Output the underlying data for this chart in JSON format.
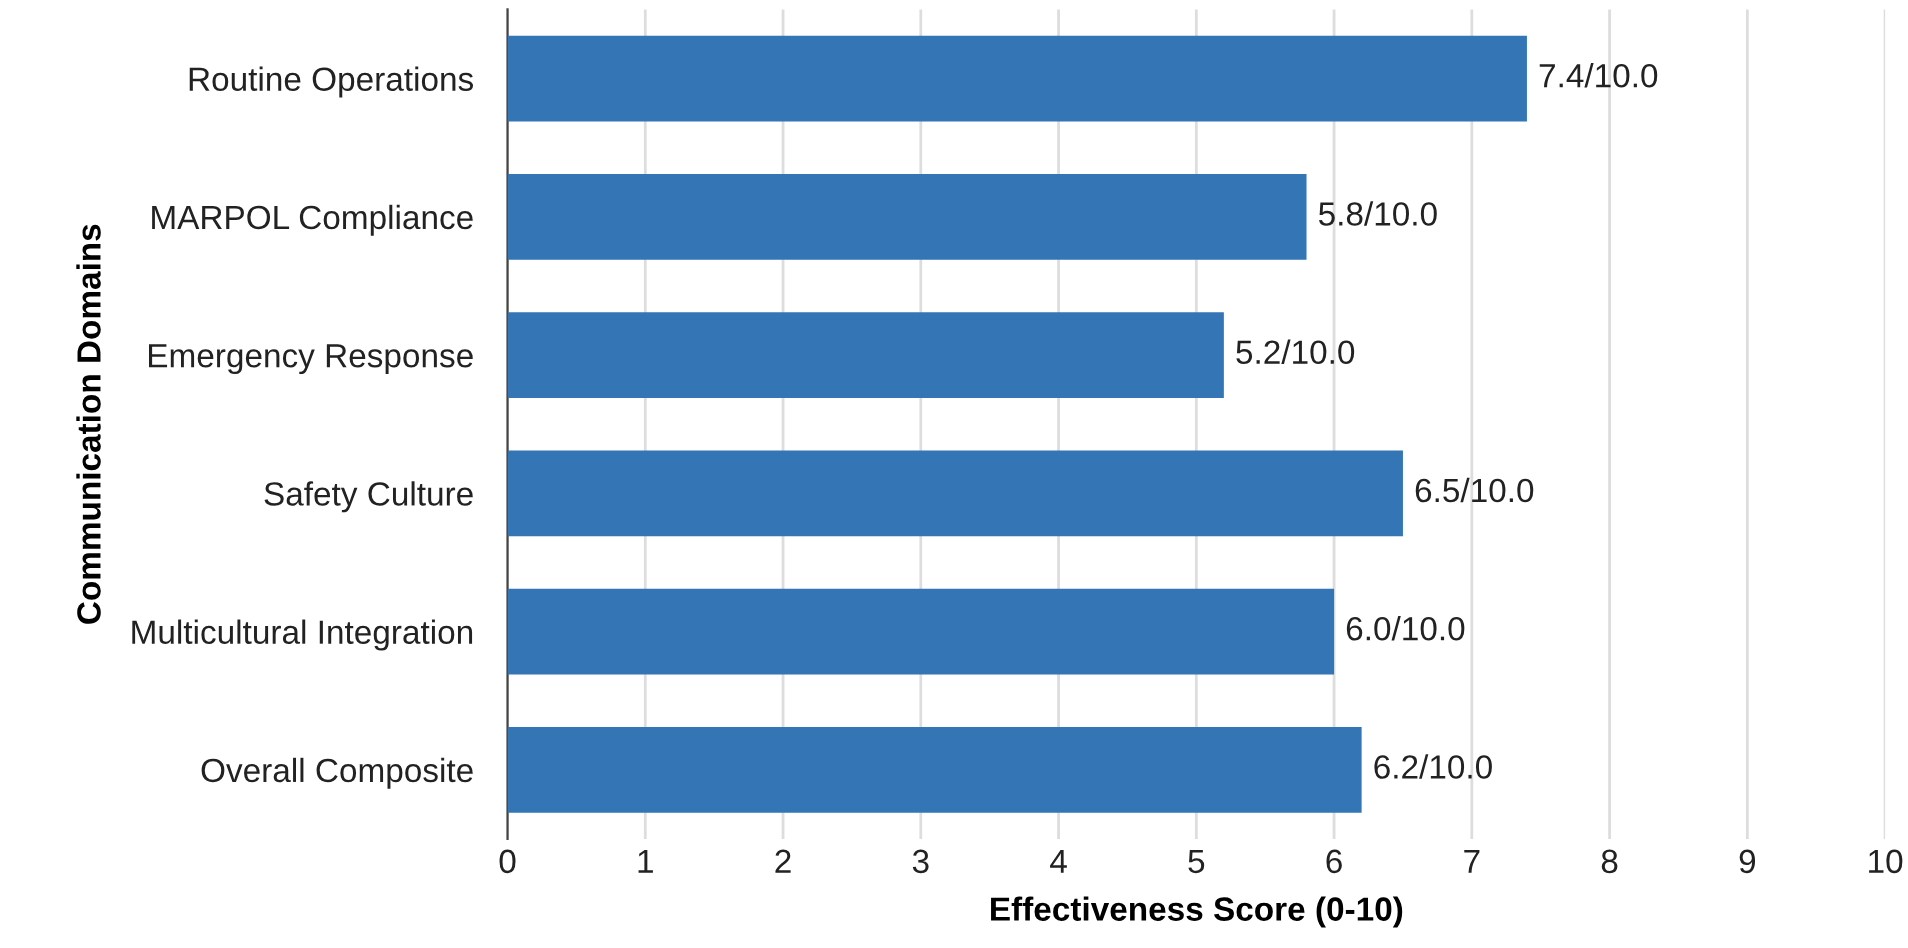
{
  "chart_data": {
    "type": "bar",
    "orientation": "horizontal",
    "xlabel": "Effectiveness Score (0-10)",
    "ylabel": "Communication Domains",
    "categories": [
      "Routine Operations",
      "MARPOL Compliance",
      "Emergency Response",
      "Safety Culture",
      "Multicultural Integration",
      "Overall Composite"
    ],
    "values": [
      7.4,
      5.8,
      5.2,
      6.5,
      6.0,
      6.2
    ],
    "value_labels": [
      "7.4/10.0",
      "5.8/10.0",
      "5.2/10.0",
      "6.5/10.0",
      "6.0/10.0",
      "6.2/10.0"
    ],
    "color": "#3475b5",
    "xlim": [
      0,
      10
    ],
    "xticks": [
      0,
      1,
      2,
      3,
      4,
      5,
      6,
      7,
      8,
      9,
      10
    ],
    "grid": "x"
  }
}
